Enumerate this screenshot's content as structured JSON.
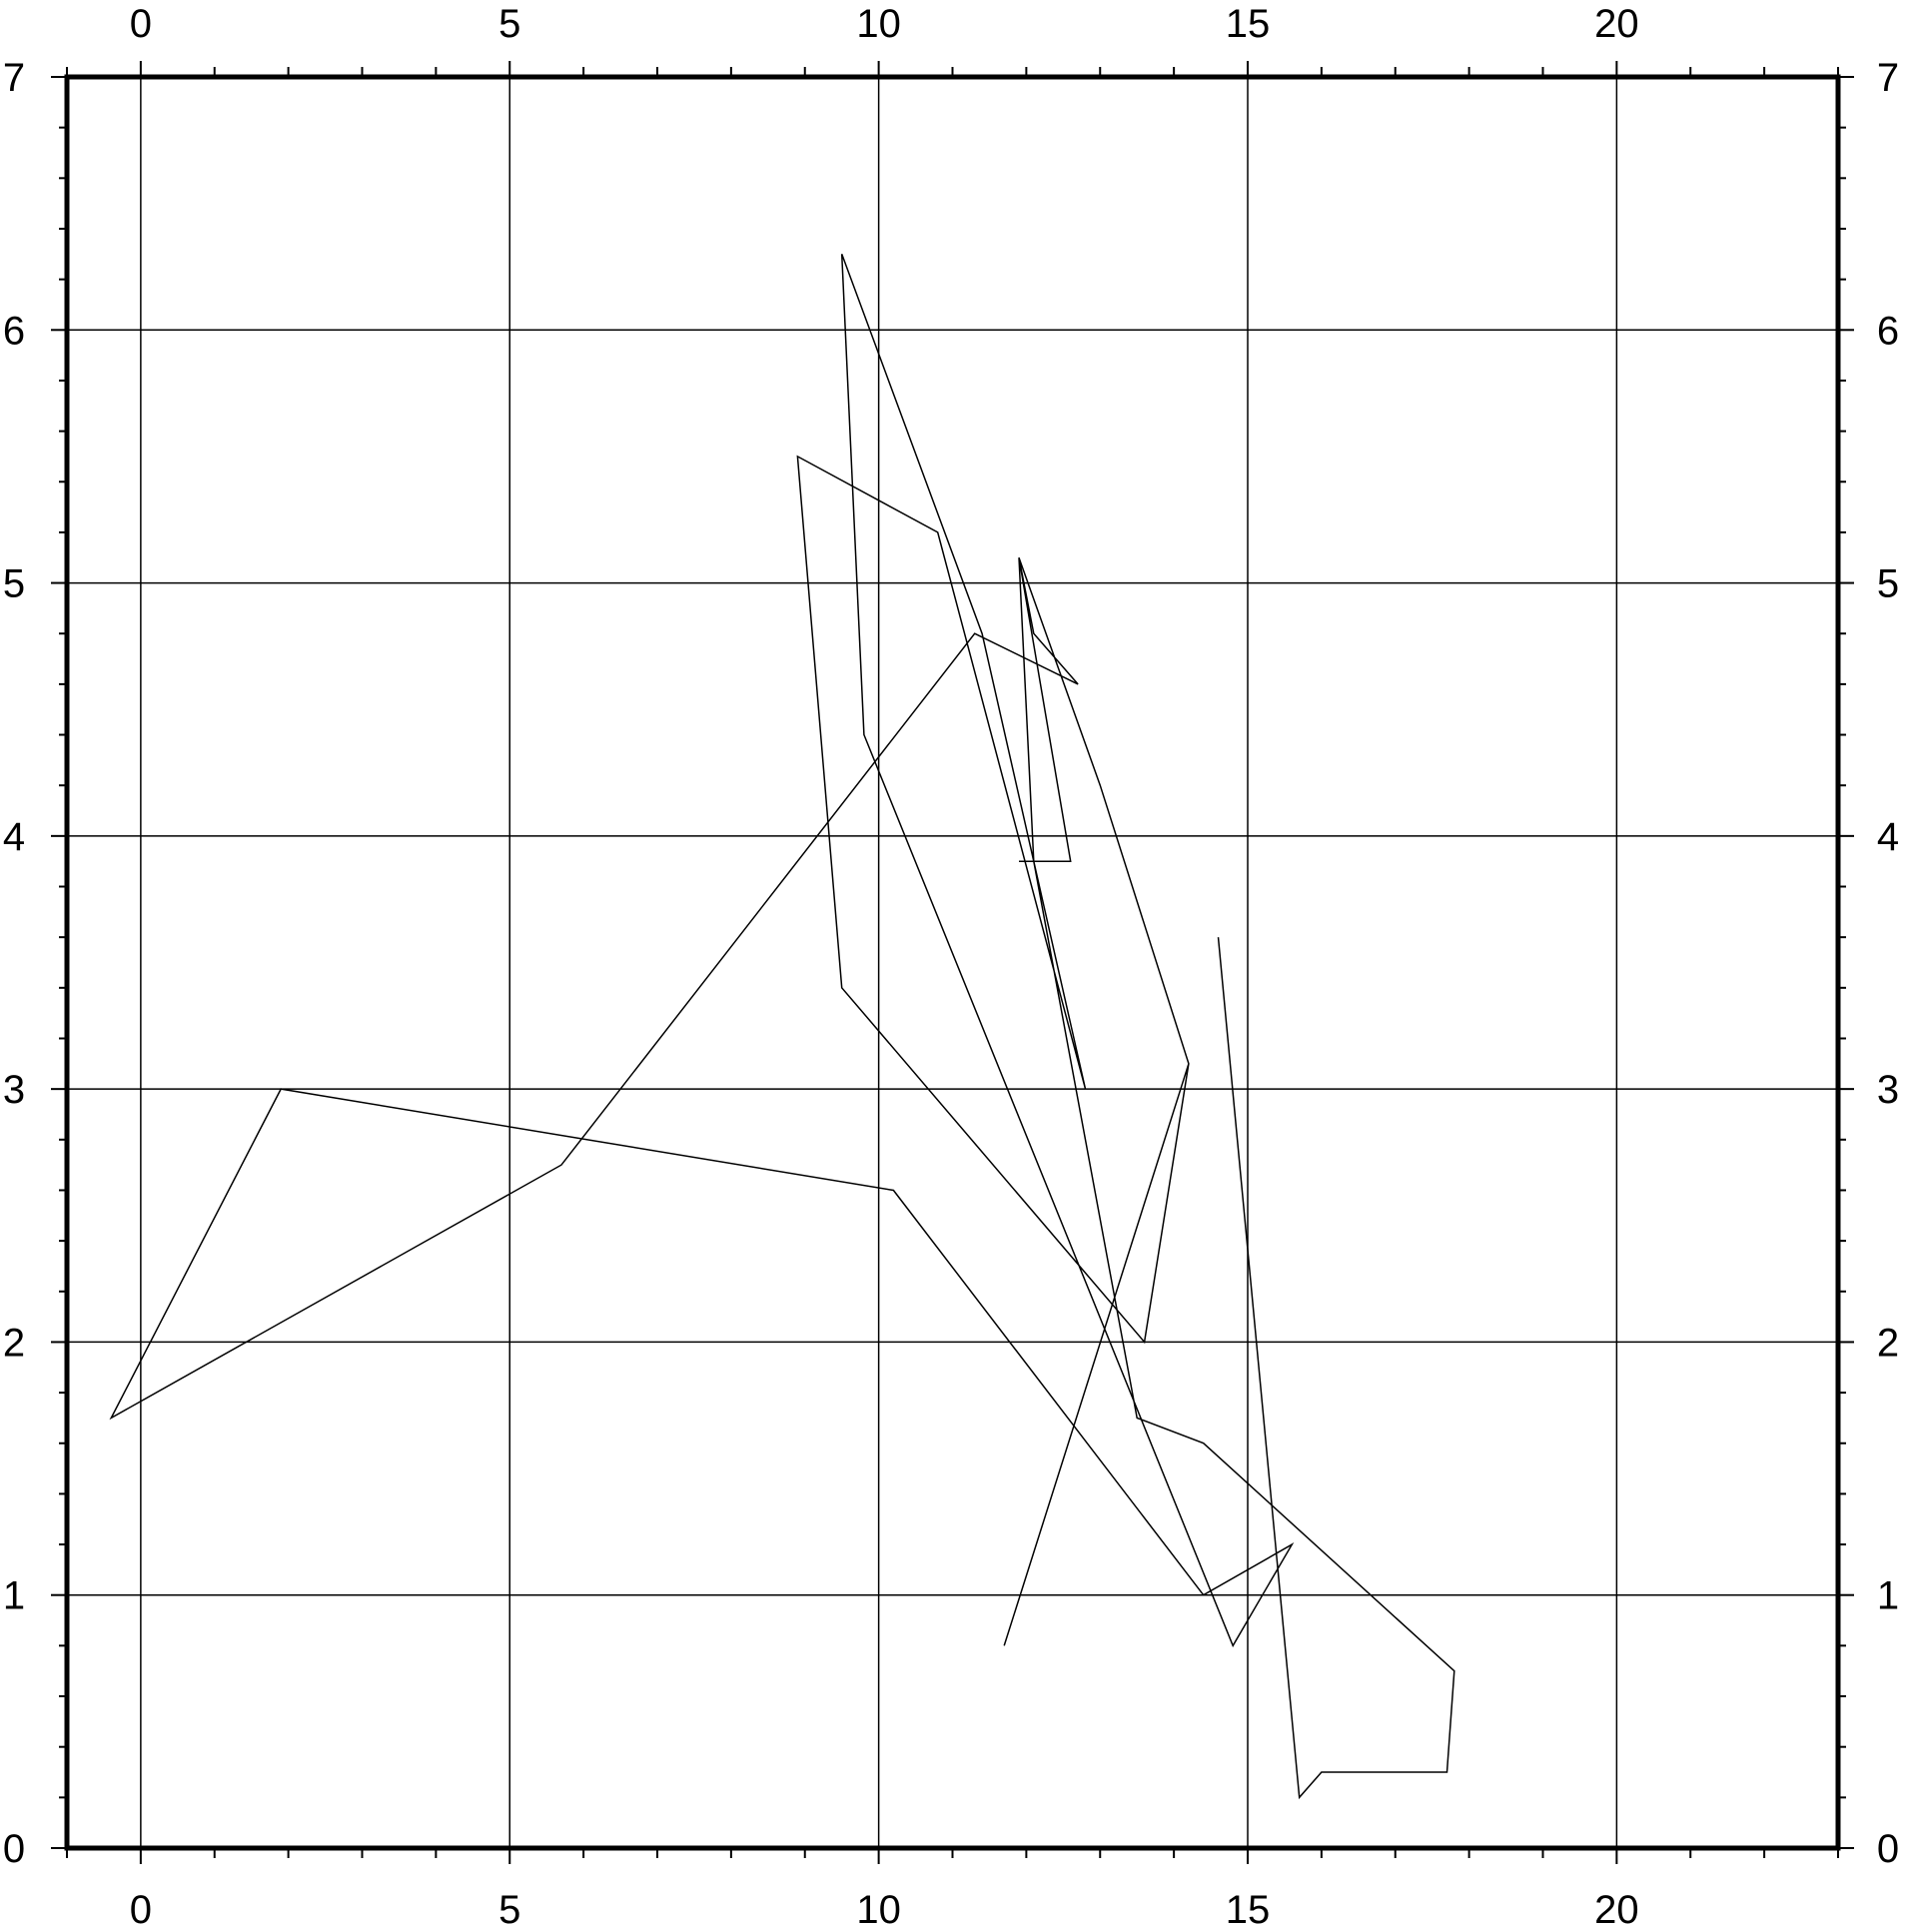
{
  "chart_data": {
    "type": "line",
    "title": "",
    "xlabel": "",
    "ylabel": "",
    "xlim": [
      -1,
      23
    ],
    "ylim": [
      0,
      7
    ],
    "grid": true,
    "legend": "none",
    "x_ticks": [
      "0",
      "5",
      "10",
      "15",
      "20"
    ],
    "y_ticks": [
      "0",
      "1",
      "2",
      "3",
      "4",
      "5",
      "6",
      "7"
    ],
    "series": [
      {
        "x": [
          14.6,
          15.7,
          16.0,
          17.7,
          17.8,
          14.4,
          13.5,
          12.1,
          11.9,
          12.1,
          12.7,
          11.3,
          5.7,
          -0.4,
          1.9,
          10.2,
          14.4,
          15.6,
          14.8,
          9.8,
          9.5,
          11.4,
          12.8,
          10.8,
          8.9,
          9.5,
          13.6,
          14.2,
          11.7,
          14.2,
          13.0,
          11.9,
          12.6,
          11.9
        ],
        "y": [
          3.6,
          0.2,
          0.3,
          0.3,
          0.7,
          1.6,
          1.7,
          3.9,
          5.1,
          4.8,
          4.6,
          4.8,
          2.7,
          1.7,
          3.0,
          2.6,
          1.0,
          1.2,
          0.8,
          4.4,
          6.3,
          4.8,
          3.0,
          5.2,
          5.5,
          3.4,
          2.0,
          3.1,
          0.8,
          3.1,
          4.2,
          5.1,
          3.9,
          3.9
        ]
      }
    ]
  },
  "style": {
    "line_color": "#000000",
    "grid_color": "#000000",
    "frame_color": "#000000",
    "background": "#ffffff"
  }
}
